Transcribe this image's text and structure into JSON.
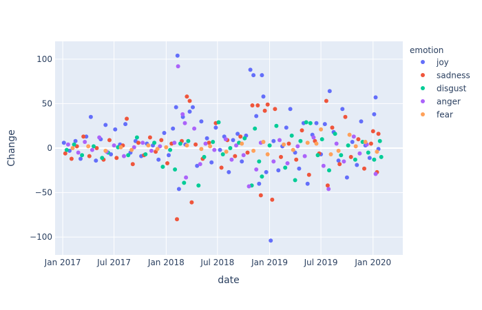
{
  "chart_data": {
    "type": "scatter",
    "xlabel": "date",
    "ylabel": "Change",
    "x_axis_type": "date",
    "xlim": [
      "2016-12-05",
      "2020-04-15"
    ],
    "ylim": [
      -120,
      120
    ],
    "x_ticks": [
      {
        "label": "Jan 2017",
        "date": "2017-01-01"
      },
      {
        "label": "Jul 2017",
        "date": "2017-07-01"
      },
      {
        "label": "Jan 2018",
        "date": "2018-01-01"
      },
      {
        "label": "Jul 2018",
        "date": "2018-07-01"
      },
      {
        "label": "Jan 2019",
        "date": "2019-01-01"
      },
      {
        "label": "Jul 2019",
        "date": "2019-07-01"
      },
      {
        "label": "Jan 2020",
        "date": "2020-01-01"
      }
    ],
    "y_ticks": [
      {
        "label": "100",
        "value": 100
      },
      {
        "label": "50",
        "value": 50
      },
      {
        "label": "0",
        "value": 0
      },
      {
        "label": "−50",
        "value": -50
      },
      {
        "label": "−100",
        "value": -100
      }
    ],
    "grid": true,
    "legend_title": "emotion",
    "legend_position": "right",
    "background": "#e5ecf6",
    "series": [
      {
        "name": "joy",
        "color": "#636efa",
        "points": [
          [
            "2017-01-05",
            6
          ],
          [
            "2017-01-25",
            -3
          ],
          [
            "2017-02-15",
            8
          ],
          [
            "2017-03-05",
            -12
          ],
          [
            "2017-03-25",
            13
          ],
          [
            "2017-04-10",
            35
          ],
          [
            "2017-04-28",
            -14
          ],
          [
            "2017-05-15",
            10
          ],
          [
            "2017-06-01",
            26
          ],
          [
            "2017-06-20",
            -7
          ],
          [
            "2017-07-05",
            21
          ],
          [
            "2017-07-22",
            4
          ],
          [
            "2017-08-10",
            27
          ],
          [
            "2017-08-28",
            -5
          ],
          [
            "2017-09-15",
            8
          ],
          [
            "2017-10-05",
            -9
          ],
          [
            "2017-10-25",
            5
          ],
          [
            "2017-11-15",
            3
          ],
          [
            "2017-12-05",
            -13
          ],
          [
            "2017-12-25",
            17
          ],
          [
            "2018-01-10",
            -8
          ],
          [
            "2018-01-25",
            22
          ],
          [
            "2018-02-05",
            46
          ],
          [
            "2018-02-10",
            104
          ],
          [
            "2018-02-15",
            -46
          ],
          [
            "2018-03-01",
            35
          ],
          [
            "2018-03-10",
            4
          ],
          [
            "2018-03-25",
            41
          ],
          [
            "2018-04-05",
            46
          ],
          [
            "2018-04-20",
            -20
          ],
          [
            "2018-05-05",
            30
          ],
          [
            "2018-05-25",
            11
          ],
          [
            "2018-06-10",
            -16
          ],
          [
            "2018-06-25",
            23
          ],
          [
            "2018-07-10",
            -2
          ],
          [
            "2018-07-25",
            13
          ],
          [
            "2018-08-10",
            -27
          ],
          [
            "2018-08-25",
            9
          ],
          [
            "2018-09-10",
            16
          ],
          [
            "2018-09-25",
            -15
          ],
          [
            "2018-10-10",
            14
          ],
          [
            "2018-10-25",
            88
          ],
          [
            "2018-11-05",
            82
          ],
          [
            "2018-11-15",
            36
          ],
          [
            "2018-11-25",
            -40
          ],
          [
            "2018-12-05",
            82
          ],
          [
            "2018-12-10",
            58
          ],
          [
            "2018-12-20",
            -27
          ],
          [
            "2019-01-05",
            -104
          ],
          [
            "2019-01-15",
            8
          ],
          [
            "2019-02-01",
            -25
          ],
          [
            "2019-02-15",
            2
          ],
          [
            "2019-03-01",
            23
          ],
          [
            "2019-03-15",
            44
          ],
          [
            "2019-04-01",
            -5
          ],
          [
            "2019-04-15",
            -23
          ],
          [
            "2019-05-01",
            28
          ],
          [
            "2019-05-15",
            -40
          ],
          [
            "2019-06-01",
            15
          ],
          [
            "2019-06-15",
            28
          ],
          [
            "2019-07-01",
            -7
          ],
          [
            "2019-07-15",
            27
          ],
          [
            "2019-08-01",
            64
          ],
          [
            "2019-08-15",
            18
          ],
          [
            "2019-09-01",
            -14
          ],
          [
            "2019-09-15",
            44
          ],
          [
            "2019-10-01",
            -33
          ],
          [
            "2019-10-20",
            7
          ],
          [
            "2019-11-05",
            -19
          ],
          [
            "2019-11-20",
            30
          ],
          [
            "2019-12-05",
            3
          ],
          [
            "2019-12-20",
            -11
          ],
          [
            "2020-01-05",
            38
          ],
          [
            "2020-01-10",
            57
          ],
          [
            "2020-01-20",
            -1
          ]
        ]
      },
      {
        "name": "sadness",
        "color": "#ef553b",
        "points": [
          [
            "2017-01-10",
            -6
          ],
          [
            "2017-02-01",
            -12
          ],
          [
            "2017-02-20",
            2
          ],
          [
            "2017-03-15",
            13
          ],
          [
            "2017-04-05",
            -9
          ],
          [
            "2017-05-01",
            0
          ],
          [
            "2017-05-25",
            -13
          ],
          [
            "2017-06-15",
            9
          ],
          [
            "2017-07-10",
            -11
          ],
          [
            "2017-08-01",
            3
          ],
          [
            "2017-08-15",
            33
          ],
          [
            "2017-09-05",
            -18
          ],
          [
            "2017-09-25",
            6
          ],
          [
            "2017-10-15",
            -8
          ],
          [
            "2017-11-05",
            12
          ],
          [
            "2017-11-25",
            -4
          ],
          [
            "2017-12-15",
            9
          ],
          [
            "2018-01-05",
            -17
          ],
          [
            "2018-01-20",
            5
          ],
          [
            "2018-02-08",
            -80
          ],
          [
            "2018-02-25",
            8
          ],
          [
            "2018-03-15",
            58
          ],
          [
            "2018-03-25",
            53
          ],
          [
            "2018-04-01",
            -61
          ],
          [
            "2018-04-15",
            4
          ],
          [
            "2018-05-10",
            -12
          ],
          [
            "2018-06-01",
            6
          ],
          [
            "2018-06-25",
            28
          ],
          [
            "2018-07-15",
            -22
          ],
          [
            "2018-08-05",
            9
          ],
          [
            "2018-09-01",
            -9
          ],
          [
            "2018-09-20",
            13
          ],
          [
            "2018-10-15",
            -5
          ],
          [
            "2018-11-01",
            48
          ],
          [
            "2018-11-20",
            48
          ],
          [
            "2018-12-01",
            -53
          ],
          [
            "2018-12-15",
            42
          ],
          [
            "2018-12-25",
            49
          ],
          [
            "2019-01-10",
            -58
          ],
          [
            "2019-01-20",
            44
          ],
          [
            "2019-02-10",
            -10
          ],
          [
            "2019-03-10",
            5
          ],
          [
            "2019-04-05",
            -13
          ],
          [
            "2019-04-25",
            20
          ],
          [
            "2019-05-20",
            -30
          ],
          [
            "2019-06-10",
            8
          ],
          [
            "2019-06-25",
            -6
          ],
          [
            "2019-07-20",
            53
          ],
          [
            "2019-07-25",
            -42
          ],
          [
            "2019-08-10",
            23
          ],
          [
            "2019-09-05",
            -18
          ],
          [
            "2019-09-25",
            35
          ],
          [
            "2019-10-15",
            -10
          ],
          [
            "2019-11-10",
            10
          ],
          [
            "2019-12-01",
            -23
          ],
          [
            "2019-12-25",
            5
          ],
          [
            "2020-01-01",
            19
          ],
          [
            "2020-01-15",
            -27
          ],
          [
            "2020-01-20",
            16
          ]
        ]
      },
      {
        "name": "disgust",
        "color": "#00cc96",
        "points": [
          [
            "2017-01-15",
            -2
          ],
          [
            "2017-02-10",
            4
          ],
          [
            "2017-03-10",
            -8
          ],
          [
            "2017-04-20",
            2
          ],
          [
            "2017-05-20",
            -11
          ],
          [
            "2017-06-10",
            -5
          ],
          [
            "2017-07-15",
            1
          ],
          [
            "2017-08-20",
            -8
          ],
          [
            "2017-09-20",
            12
          ],
          [
            "2017-10-20",
            -7
          ],
          [
            "2017-11-20",
            6
          ],
          [
            "2017-12-20",
            -21
          ],
          [
            "2018-01-15",
            -2
          ],
          [
            "2018-02-01",
            -24
          ],
          [
            "2018-02-20",
            5
          ],
          [
            "2018-03-05",
            -39
          ],
          [
            "2018-03-20",
            8
          ],
          [
            "2018-04-25",
            -42
          ],
          [
            "2018-05-15",
            -10
          ],
          [
            "2018-06-15",
            7
          ],
          [
            "2018-07-05",
            29
          ],
          [
            "2018-07-20",
            -7
          ],
          [
            "2018-08-15",
            0
          ],
          [
            "2018-09-15",
            6
          ],
          [
            "2018-10-05",
            11
          ],
          [
            "2018-10-30",
            -42
          ],
          [
            "2018-11-10",
            22
          ],
          [
            "2018-11-25",
            -15
          ],
          [
            "2018-12-05",
            -32
          ],
          [
            "2019-01-01",
            3
          ],
          [
            "2019-01-25",
            25
          ],
          [
            "2019-02-25",
            -22
          ],
          [
            "2019-03-20",
            14
          ],
          [
            "2019-04-01",
            -36
          ],
          [
            "2019-04-20",
            8
          ],
          [
            "2019-05-10",
            29
          ],
          [
            "2019-05-25",
            28
          ],
          [
            "2019-06-20",
            -8
          ],
          [
            "2019-07-05",
            10
          ],
          [
            "2019-07-30",
            -25
          ],
          [
            "2019-08-20",
            16
          ],
          [
            "2019-09-10",
            -8
          ],
          [
            "2019-10-05",
            3
          ],
          [
            "2019-10-30",
            -13
          ],
          [
            "2019-11-25",
            7
          ],
          [
            "2019-12-15",
            -5
          ],
          [
            "2020-01-05",
            -13
          ],
          [
            "2020-01-25",
            8
          ],
          [
            "2020-01-30",
            -10
          ]
        ]
      },
      {
        "name": "anger",
        "color": "#ab63fa",
        "points": [
          [
            "2017-01-20",
            4
          ],
          [
            "2017-02-25",
            -5
          ],
          [
            "2017-03-20",
            7
          ],
          [
            "2017-04-15",
            -2
          ],
          [
            "2017-05-10",
            12
          ],
          [
            "2017-06-05",
            -4
          ],
          [
            "2017-07-01",
            3
          ],
          [
            "2017-08-05",
            -9
          ],
          [
            "2017-09-10",
            1
          ],
          [
            "2017-10-10",
            6
          ],
          [
            "2017-11-10",
            -3
          ],
          [
            "2017-12-10",
            2
          ],
          [
            "2018-01-30",
            6
          ],
          [
            "2018-02-12",
            92
          ],
          [
            "2018-02-28",
            38
          ],
          [
            "2018-03-08",
            28
          ],
          [
            "2018-03-12",
            -33
          ],
          [
            "2018-04-10",
            22
          ],
          [
            "2018-05-01",
            -18
          ],
          [
            "2018-05-20",
            5
          ],
          [
            "2018-06-20",
            -2
          ],
          [
            "2018-07-30",
            10
          ],
          [
            "2018-08-20",
            -13
          ],
          [
            "2018-09-05",
            3
          ],
          [
            "2018-10-01",
            -8
          ],
          [
            "2018-10-20",
            -43
          ],
          [
            "2018-11-15",
            -24
          ],
          [
            "2018-12-01",
            6
          ],
          [
            "2019-01-15",
            -15
          ],
          [
            "2019-02-05",
            9
          ],
          [
            "2019-03-05",
            -17
          ],
          [
            "2019-04-10",
            2
          ],
          [
            "2019-05-05",
            -9
          ],
          [
            "2019-06-05",
            12
          ],
          [
            "2019-07-10",
            -20
          ],
          [
            "2019-07-28",
            -46
          ],
          [
            "2019-08-25",
            5
          ],
          [
            "2019-09-20",
            -15
          ],
          [
            "2019-10-25",
            13
          ],
          [
            "2019-11-15",
            -6
          ],
          [
            "2019-12-10",
            4
          ],
          [
            "2020-01-10",
            -29
          ]
        ]
      },
      {
        "name": "fear",
        "color": "#ffa15a",
        "points": [
          [
            "2017-02-05",
            0
          ],
          [
            "2017-04-01",
            2
          ],
          [
            "2017-06-01",
            -3
          ],
          [
            "2017-07-25",
            1
          ],
          [
            "2017-09-01",
            -2
          ],
          [
            "2017-10-30",
            3
          ],
          [
            "2017-12-01",
            -1
          ],
          [
            "2018-01-01",
            1
          ],
          [
            "2018-03-15",
            3
          ],
          [
            "2018-05-05",
            -1
          ],
          [
            "2018-06-05",
            2
          ],
          [
            "2018-08-01",
            -4
          ],
          [
            "2018-09-25",
            5
          ],
          [
            "2018-11-05",
            -3
          ],
          [
            "2018-12-10",
            7
          ],
          [
            "2018-12-25",
            -7
          ],
          [
            "2019-02-20",
            4
          ],
          [
            "2019-03-25",
            -2
          ],
          [
            "2019-05-15",
            6
          ],
          [
            "2019-06-15",
            5
          ],
          [
            "2019-07-01",
            21
          ],
          [
            "2019-08-05",
            -7
          ],
          [
            "2019-09-01",
            -3
          ],
          [
            "2019-10-10",
            15
          ],
          [
            "2019-11-01",
            2
          ],
          [
            "2019-12-05",
            7
          ],
          [
            "2020-01-15",
            -4
          ]
        ]
      }
    ]
  }
}
